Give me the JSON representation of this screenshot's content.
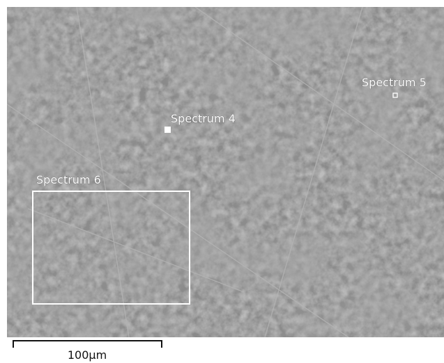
{
  "annotations": [
    {
      "label": "Spectrum 4"
    },
    {
      "label": "Spectrum 5"
    },
    {
      "label": "Spectrum 6"
    }
  ],
  "scale_bar": {
    "label": "100µm"
  }
}
